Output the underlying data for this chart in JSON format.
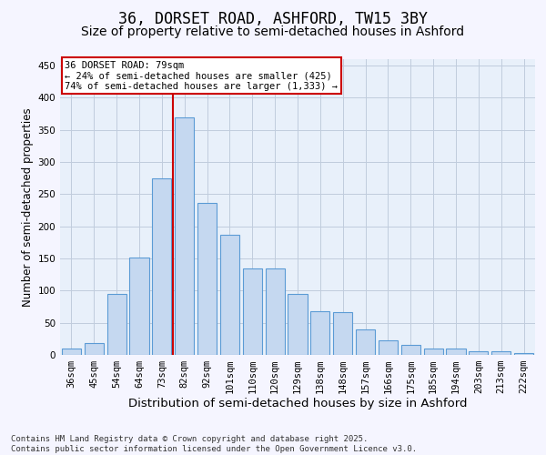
{
  "title": "36, DORSET ROAD, ASHFORD, TW15 3BY",
  "subtitle": "Size of property relative to semi-detached houses in Ashford",
  "xlabel": "Distribution of semi-detached houses by size in Ashford",
  "ylabel": "Number of semi-detached properties",
  "categories": [
    "36sqm",
    "45sqm",
    "54sqm",
    "64sqm",
    "73sqm",
    "82sqm",
    "92sqm",
    "101sqm",
    "110sqm",
    "120sqm",
    "129sqm",
    "138sqm",
    "148sqm",
    "157sqm",
    "166sqm",
    "175sqm",
    "185sqm",
    "194sqm",
    "203sqm",
    "213sqm",
    "222sqm"
  ],
  "values": [
    10,
    18,
    95,
    152,
    275,
    370,
    237,
    187,
    135,
    135,
    95,
    68,
    67,
    40,
    22,
    16,
    10,
    10,
    5,
    5,
    3
  ],
  "bar_color": "#c5d8f0",
  "bar_edge_color": "#5b9bd5",
  "vline_x": 4.5,
  "vline_color": "#cc0000",
  "annotation_text": "36 DORSET ROAD: 79sqm\n← 24% of semi-detached houses are smaller (425)\n74% of semi-detached houses are larger (1,333) →",
  "annotation_box_color": "#cc0000",
  "ylim": [
    0,
    460
  ],
  "yticks": [
    0,
    50,
    100,
    150,
    200,
    250,
    300,
    350,
    400,
    450
  ],
  "grid_color": "#c0ccdd",
  "background_color": "#e8f0fa",
  "fig_background_color": "#f5f5ff",
  "footer_text": "Contains HM Land Registry data © Crown copyright and database right 2025.\nContains public sector information licensed under the Open Government Licence v3.0.",
  "title_fontsize": 12,
  "subtitle_fontsize": 10,
  "xlabel_fontsize": 9.5,
  "ylabel_fontsize": 8.5,
  "tick_fontsize": 7.5,
  "annotation_fontsize": 7.5,
  "footer_fontsize": 6.5
}
